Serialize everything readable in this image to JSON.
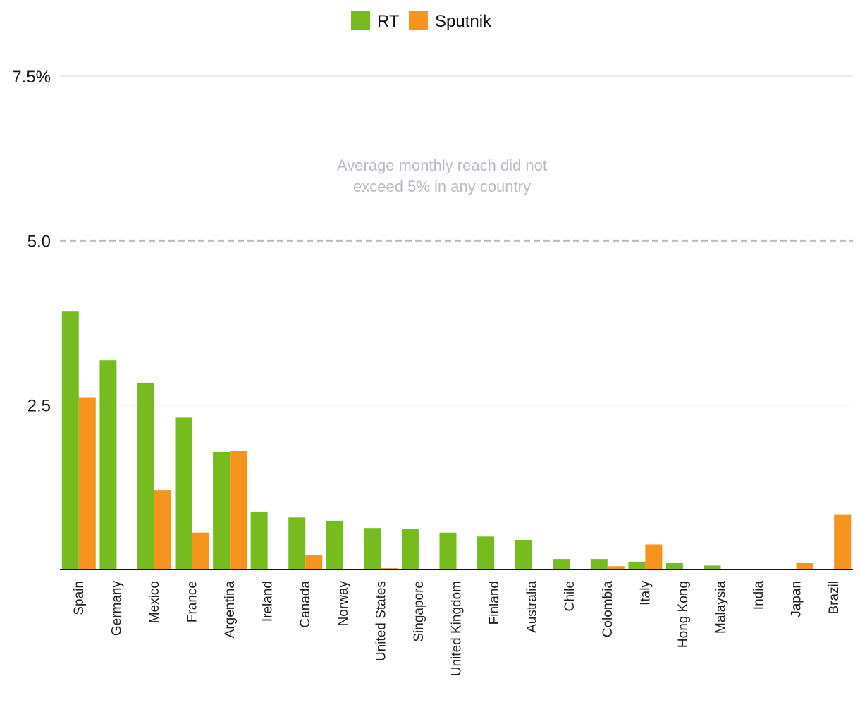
{
  "chart_data": {
    "type": "bar",
    "title": "",
    "xlabel": "",
    "ylabel": "",
    "ylim": [
      0,
      7.5
    ],
    "y_ticks": [
      {
        "value": 2.5,
        "label": "2.5"
      },
      {
        "value": 5.0,
        "label": "5.0"
      },
      {
        "value": 7.5,
        "label": "7.5%"
      }
    ],
    "grid": true,
    "legend_position": "top-center",
    "categories": [
      "Spain",
      "Germany",
      "Mexico",
      "France",
      "Argentina",
      "Ireland",
      "Canada",
      "Norway",
      "United States",
      "Singapore",
      "United Kingdom",
      "Finland",
      "Australia",
      "Chile",
      "Colombia",
      "Italy",
      "Hong Kong",
      "Malaysia",
      "India",
      "Japan",
      "Brazil"
    ],
    "series": [
      {
        "name": "RT",
        "color": "#77bc1f",
        "values": [
          3.93,
          3.18,
          2.84,
          2.31,
          1.79,
          0.88,
          0.79,
          0.74,
          0.63,
          0.62,
          0.56,
          0.5,
          0.45,
          0.16,
          0.16,
          0.12,
          0.1,
          0.06,
          0,
          0,
          0
        ]
      },
      {
        "name": "Sputnik",
        "color": "#f7941d",
        "values": [
          2.62,
          0,
          1.21,
          0.56,
          1.8,
          0,
          0.22,
          0,
          0.02,
          0,
          0,
          0,
          0,
          0,
          0.05,
          0.38,
          0,
          0,
          0,
          0.1,
          0.84
        ]
      }
    ],
    "reference_line": {
      "value": 5.0,
      "style": "dashed",
      "color": "#b9bcc7"
    },
    "annotation": {
      "lines": [
        "Average monthly reach did not",
        "exceed 5% in any country"
      ],
      "color": "#b9bcc7"
    }
  }
}
